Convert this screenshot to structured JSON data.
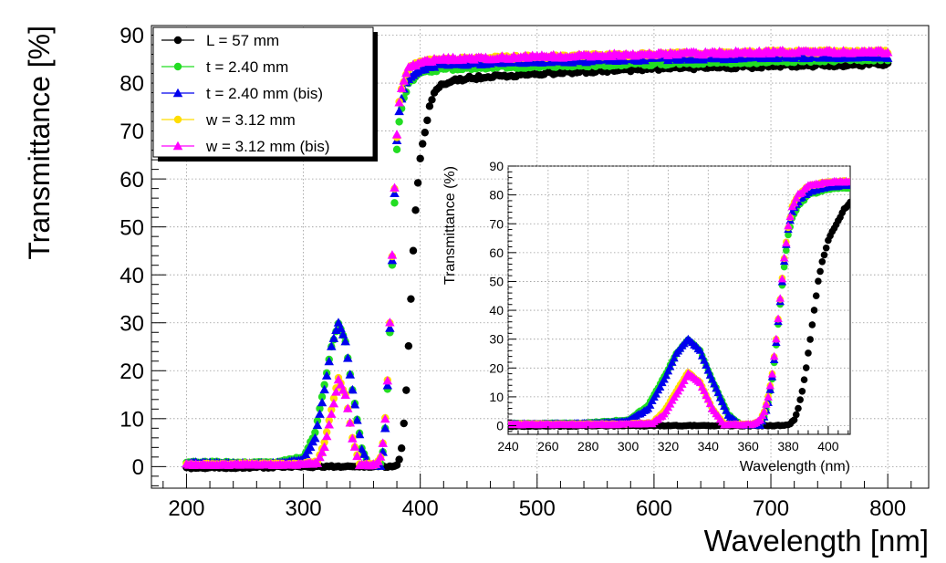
{
  "chart_data": [
    {
      "type": "scatter",
      "xlabel": "Wavelength [nm]",
      "ylabel": "Transmittance [%]",
      "xlim": [
        170,
        835
      ],
      "ylim": [
        -4.5,
        92
      ],
      "xticks": [
        200,
        300,
        400,
        500,
        600,
        700,
        800
      ],
      "yticks": [
        0,
        10,
        20,
        30,
        40,
        50,
        60,
        70,
        80,
        90
      ],
      "grid": true,
      "legend_position": "top-left",
      "series": [
        {
          "name": "L = 57 mm",
          "color": "#000000",
          "marker": "circle",
          "x_step": 2,
          "points": [
            [
              200,
              -0.3
            ],
            [
              300,
              0
            ],
            [
              370,
              0
            ],
            [
              380,
              0.2
            ],
            [
              383,
              2
            ],
            [
              385,
              6
            ],
            [
              387,
              12
            ],
            [
              389,
              20
            ],
            [
              391,
              30
            ],
            [
              393,
              40
            ],
            [
              395,
              50
            ],
            [
              397,
              57
            ],
            [
              400,
              64
            ],
            [
              404,
              70
            ],
            [
              408,
              75
            ],
            [
              412,
              78
            ],
            [
              420,
              80
            ],
            [
              440,
              81
            ],
            [
              500,
              82
            ],
            [
              600,
              83
            ],
            [
              700,
              83.5
            ],
            [
              800,
              84
            ]
          ]
        },
        {
          "name": "t = 2.40 mm",
          "color": "#22dd22",
          "marker": "circle",
          "x_step": 2,
          "points": [
            [
              200,
              1
            ],
            [
              260,
              0.8
            ],
            [
              280,
              1
            ],
            [
              300,
              2
            ],
            [
              310,
              7
            ],
            [
              318,
              17
            ],
            [
              324,
              25
            ],
            [
              330,
              29.8
            ],
            [
              336,
              26
            ],
            [
              342,
              16
            ],
            [
              350,
              4
            ],
            [
              356,
              0.5
            ],
            [
              366,
              0.5
            ],
            [
              368,
              3
            ],
            [
              370,
              8
            ],
            [
              372,
              16
            ],
            [
              374,
              28
            ],
            [
              376,
              42
            ],
            [
              378,
              55
            ],
            [
              380,
              66
            ],
            [
              382,
              72
            ],
            [
              385,
              76
            ],
            [
              390,
              80
            ],
            [
              400,
              82
            ],
            [
              420,
              83
            ],
            [
              500,
              83.5
            ],
            [
              600,
              84
            ],
            [
              700,
              84.5
            ],
            [
              800,
              85
            ]
          ]
        },
        {
          "name": "t = 2.40 mm (bis)",
          "color": "#0000ee",
          "marker": "triangle",
          "x_step": 2,
          "points": [
            [
              200,
              0.8
            ],
            [
              260,
              0.6
            ],
            [
              280,
              0.8
            ],
            [
              300,
              1.6
            ],
            [
              310,
              6
            ],
            [
              318,
              16
            ],
            [
              324,
              25
            ],
            [
              330,
              30.2
            ],
            [
              336,
              26
            ],
            [
              342,
              16
            ],
            [
              350,
              3.5
            ],
            [
              356,
              0.3
            ],
            [
              366,
              0.3
            ],
            [
              368,
              3
            ],
            [
              370,
              8
            ],
            [
              372,
              17
            ],
            [
              374,
              29
            ],
            [
              376,
              43
            ],
            [
              378,
              57
            ],
            [
              380,
              68
            ],
            [
              382,
              74
            ],
            [
              385,
              78
            ],
            [
              390,
              81
            ],
            [
              400,
              83
            ],
            [
              420,
              84
            ],
            [
              500,
              84.5
            ],
            [
              600,
              85
            ],
            [
              700,
              85.5
            ],
            [
              800,
              85.5
            ]
          ]
        },
        {
          "name": "w = 3.12 mm",
          "color": "#ffdd00",
          "marker": "circle",
          "x_step": 2,
          "points": [
            [
              200,
              0.5
            ],
            [
              300,
              0.6
            ],
            [
              312,
              1
            ],
            [
              318,
              5
            ],
            [
              324,
              12
            ],
            [
              330,
              18.5
            ],
            [
              336,
              15
            ],
            [
              342,
              6
            ],
            [
              348,
              0.5
            ],
            [
              362,
              0.5
            ],
            [
              366,
              2
            ],
            [
              368,
              5
            ],
            [
              370,
              10
            ],
            [
              372,
              18
            ],
            [
              374,
              30
            ],
            [
              376,
              44
            ],
            [
              378,
              58
            ],
            [
              380,
              69
            ],
            [
              382,
              76
            ],
            [
              385,
              80
            ],
            [
              390,
              83
            ],
            [
              400,
              84.5
            ],
            [
              420,
              85
            ],
            [
              500,
              85.5
            ],
            [
              600,
              86
            ],
            [
              700,
              86.5
            ],
            [
              800,
              86.5
            ]
          ]
        },
        {
          "name": "w = 3.12 mm (bis)",
          "color": "#ff00ff",
          "marker": "triangle",
          "x_step": 2,
          "points": [
            [
              200,
              0.4
            ],
            [
              300,
              0.5
            ],
            [
              312,
              0.8
            ],
            [
              318,
              4
            ],
            [
              324,
              11
            ],
            [
              330,
              18
            ],
            [
              336,
              15
            ],
            [
              342,
              6
            ],
            [
              348,
              0.4
            ],
            [
              362,
              0.4
            ],
            [
              366,
              2
            ],
            [
              368,
              5
            ],
            [
              370,
              10
            ],
            [
              372,
              18
            ],
            [
              374,
              30
            ],
            [
              376,
              44
            ],
            [
              378,
              58
            ],
            [
              380,
              69
            ],
            [
              382,
              76
            ],
            [
              385,
              80
            ],
            [
              390,
              83
            ],
            [
              400,
              84.5
            ],
            [
              420,
              85
            ],
            [
              500,
              85.5
            ],
            [
              600,
              86
            ],
            [
              700,
              86.5
            ],
            [
              800,
              86.5
            ]
          ]
        }
      ]
    },
    {
      "type": "scatter",
      "role": "inset",
      "xlabel": "Wavelength (nm)",
      "ylabel": "Transmittance (%)",
      "xlim": [
        240,
        411
      ],
      "ylim": [
        -3,
        90
      ],
      "xticks": [
        240,
        260,
        280,
        300,
        320,
        340,
        360,
        380,
        400
      ],
      "yticks": [
        0,
        10,
        20,
        30,
        40,
        50,
        60,
        70,
        80,
        90
      ],
      "grid": true,
      "x_step": 1
    }
  ]
}
